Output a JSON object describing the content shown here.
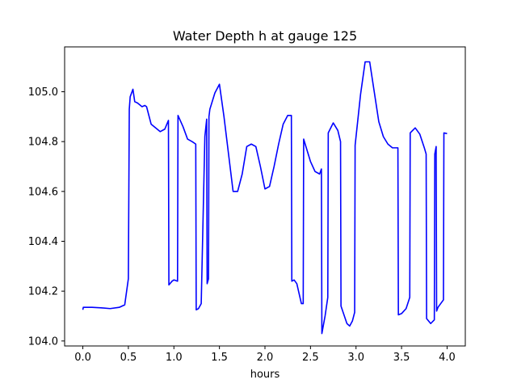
{
  "chart_data": {
    "type": "line",
    "title": "Water Depth h at gauge 125",
    "xlabel": "hours",
    "ylabel": "",
    "xlim": [
      -0.2,
      4.2
    ],
    "ylim": [
      103.98,
      105.18
    ],
    "grid": false,
    "xticks": [
      0.0,
      0.5,
      1.0,
      1.5,
      2.0,
      2.5,
      3.0,
      3.5,
      4.0
    ],
    "xtick_labels": [
      "0.0",
      "0.5",
      "1.0",
      "1.5",
      "2.0",
      "2.5",
      "3.0",
      "3.5",
      "4.0"
    ],
    "yticks": [
      104.0,
      104.2,
      104.4,
      104.6,
      104.8,
      105.0
    ],
    "ytick_labels": [
      "104.0",
      "104.2",
      "104.4",
      "104.6",
      "104.8",
      "105.0"
    ],
    "series": [
      {
        "color": "#0000ff",
        "x": [
          0.0,
          0.005,
          0.1,
          0.2,
          0.3,
          0.4,
          0.46,
          0.5,
          0.51,
          0.52,
          0.55,
          0.57,
          0.6,
          0.65,
          0.68,
          0.7,
          0.75,
          0.8,
          0.85,
          0.9,
          0.94,
          0.945,
          0.98,
          1.0,
          1.04,
          1.045,
          1.1,
          1.15,
          1.2,
          1.24,
          1.245,
          1.27,
          1.3,
          1.34,
          1.36,
          1.365,
          1.38,
          1.385,
          1.39,
          1.395,
          1.45,
          1.5,
          1.55,
          1.6,
          1.65,
          1.7,
          1.75,
          1.8,
          1.85,
          1.9,
          1.95,
          2.0,
          2.05,
          2.1,
          2.15,
          2.2,
          2.25,
          2.29,
          2.295,
          2.32,
          2.35,
          2.4,
          2.42,
          2.425,
          2.5,
          2.55,
          2.6,
          2.62,
          2.625,
          2.66,
          2.69,
          2.695,
          2.75,
          2.8,
          2.83,
          2.835,
          2.9,
          2.93,
          2.96,
          2.985,
          2.99,
          3.05,
          3.1,
          3.15,
          3.2,
          3.25,
          3.3,
          3.35,
          3.4,
          3.46,
          3.465,
          3.5,
          3.55,
          3.59,
          3.595,
          3.65,
          3.7,
          3.75,
          3.77,
          3.775,
          3.82,
          3.86,
          3.865,
          3.88,
          3.885,
          3.9,
          3.96,
          3.965,
          4.0
        ],
        "y": [
          104.125,
          104.135,
          104.135,
          104.133,
          104.13,
          104.135,
          104.145,
          104.25,
          104.93,
          104.98,
          105.01,
          104.96,
          104.955,
          104.94,
          104.945,
          104.94,
          104.87,
          104.855,
          104.84,
          104.85,
          104.885,
          104.225,
          104.24,
          104.245,
          104.24,
          104.905,
          104.86,
          104.81,
          104.8,
          104.79,
          104.125,
          104.13,
          104.15,
          104.82,
          104.89,
          104.23,
          104.25,
          104.9,
          104.915,
          104.93,
          104.995,
          105.03,
          104.9,
          104.75,
          104.6,
          104.6,
          104.67,
          104.78,
          104.79,
          104.78,
          104.7,
          104.61,
          104.62,
          104.7,
          104.79,
          104.87,
          104.905,
          104.905,
          104.24,
          104.245,
          104.23,
          104.15,
          104.15,
          104.81,
          104.72,
          104.68,
          104.67,
          104.69,
          104.03,
          104.1,
          104.175,
          104.835,
          104.875,
          104.845,
          104.8,
          104.14,
          104.07,
          104.06,
          104.08,
          104.115,
          104.785,
          104.99,
          105.12,
          105.12,
          105.0,
          104.88,
          104.82,
          104.79,
          104.775,
          104.775,
          104.105,
          104.11,
          104.13,
          104.175,
          104.835,
          104.855,
          104.83,
          104.775,
          104.75,
          104.09,
          104.07,
          104.085,
          104.75,
          104.78,
          104.12,
          104.135,
          104.165,
          104.835,
          104.832
        ]
      }
    ]
  }
}
